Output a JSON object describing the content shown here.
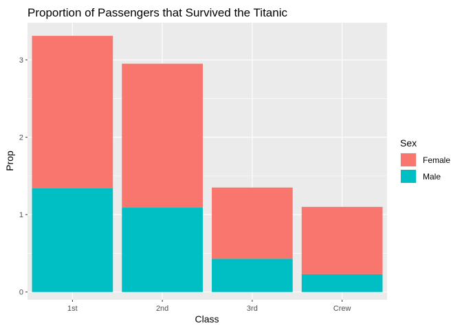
{
  "chart_data": {
    "type": "bar",
    "stacked": true,
    "title": "Proportion of Passengers that Survived the Titanic",
    "xlabel": "Class",
    "ylabel": "Prop",
    "categories": [
      "1st",
      "2nd",
      "3rd",
      "Crew"
    ],
    "series": [
      {
        "name": "Female",
        "color": "#F8766D",
        "values": [
          1.97,
          1.86,
          0.92,
          0.87
        ]
      },
      {
        "name": "Male",
        "color": "#00BFC4",
        "values": [
          1.34,
          1.09,
          0.43,
          0.23
        ]
      }
    ],
    "ylim": [
      -0.1,
      3.48
    ],
    "yticks": [
      0,
      1,
      2,
      3
    ],
    "grid": true,
    "legend": {
      "title": "Sex",
      "position": "right",
      "entries": [
        "Female",
        "Male"
      ]
    },
    "panel_background": "#EBEBEB",
    "gridline_color": "#FFFFFF"
  }
}
